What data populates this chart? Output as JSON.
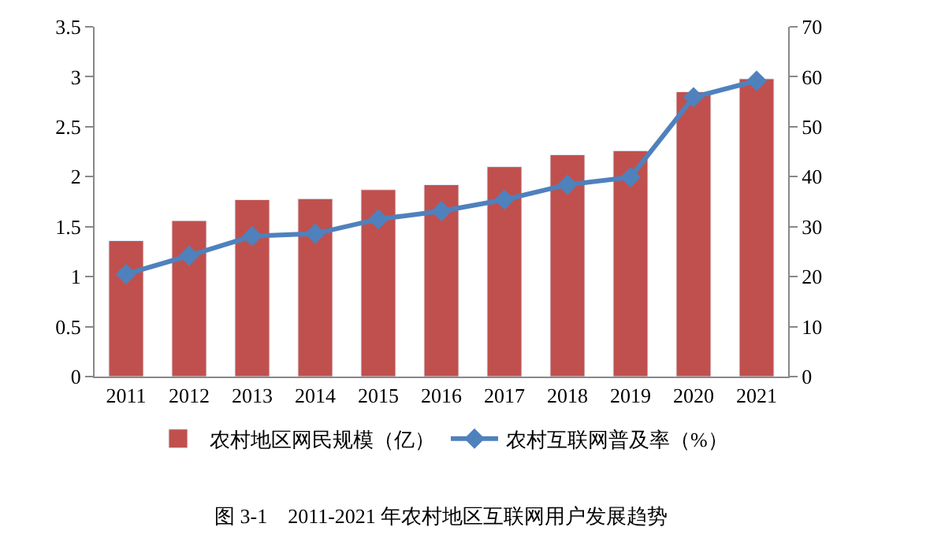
{
  "chart_data": {
    "type": "bar",
    "categories": [
      "2011",
      "2012",
      "2013",
      "2014",
      "2015",
      "2016",
      "2017",
      "2018",
      "2019",
      "2020",
      "2021"
    ],
    "series": [
      {
        "name": "农村地区网民规模（亿）",
        "color": "#c0504d",
        "values": [
          1.36,
          1.56,
          1.77,
          1.78,
          1.87,
          1.92,
          2.1,
          2.22,
          2.26,
          2.85,
          2.98
        ]
      },
      {
        "name": "农村互联网普及率（%）",
        "color": "#4f81bd",
        "type": "line",
        "axis": "y2",
        "marker": "diamond",
        "values": [
          20.5,
          24.2,
          28.1,
          28.6,
          31.5,
          33.1,
          35.4,
          38.4,
          39.9,
          55.9,
          59.2
        ]
      }
    ],
    "ylim": [
      0,
      3.5
    ],
    "yticks": [
      0,
      0.5,
      1,
      1.5,
      2,
      2.5,
      3,
      3.5
    ],
    "y2lim": [
      0,
      70
    ],
    "y2ticks": [
      0,
      10,
      20,
      30,
      40,
      50,
      60,
      70
    ],
    "legend": "bottom",
    "annotations": [
      "图 3-1　2011-2021 年农村地区互联网用户发展趋势"
    ]
  }
}
